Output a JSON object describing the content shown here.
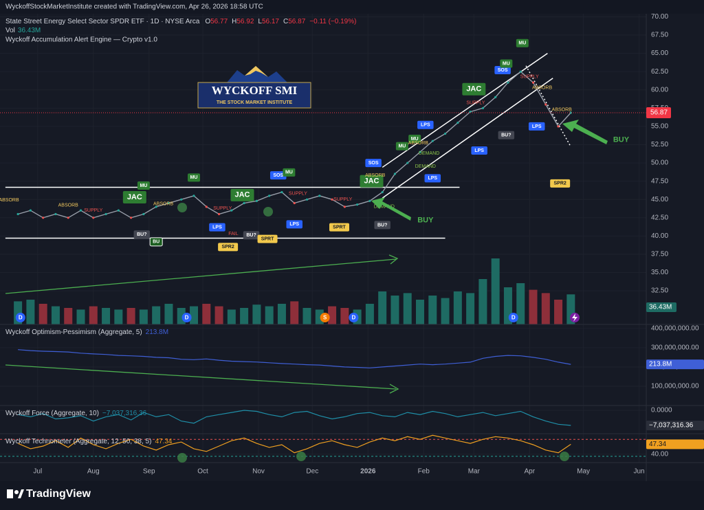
{
  "header": {
    "credit": "WyckoffStockMarketInstitute created with TradingView.com, Apr 26, 2026 18:58 UTC",
    "symbol": "State Street Energy Select Sector SPDR ETF · 1D · NYSE Arca",
    "ohlc": [
      {
        "label": "O",
        "value": 56.77
      },
      {
        "label": "H",
        "value": 56.92
      },
      {
        "label": "L",
        "value": 56.17
      },
      {
        "label": "C",
        "value": 56.87
      }
    ],
    "change": "−0.11 (−0.19%)",
    "volume_label": "Vol",
    "indicator": "Wyckoff Accumulation Alert Engine — Crypto v1.0"
  },
  "logo": {
    "title": "WYCKOFF SMI",
    "subtitle": "THE STOCK MARKET INSTITUTE"
  },
  "footer": {
    "brand": "TradingView"
  },
  "chart_data": [
    {
      "type": "line",
      "color": "#9aa0ab",
      "x": [
        0,
        7,
        14,
        21,
        28,
        35,
        42,
        49,
        56,
        63,
        70,
        77,
        84,
        91,
        98,
        105,
        112,
        119,
        126,
        133,
        140,
        147,
        154,
        161,
        168,
        175,
        182,
        189,
        196,
        203,
        210,
        217,
        224,
        231,
        238,
        245,
        252,
        259,
        266,
        273,
        280,
        287,
        294,
        301,
        308
      ],
      "values": [
        43,
        43.5,
        42.5,
        43,
        42.5,
        43.5,
        42.5,
        43,
        43.5,
        42.5,
        43,
        44,
        44.5,
        45,
        45.5,
        44,
        43,
        43.5,
        44.5,
        44.8,
        45.5,
        46,
        44.5,
        45,
        45.5,
        45,
        44,
        44.3,
        44.8,
        46,
        48.5,
        50,
        51.5,
        53,
        54,
        55.5,
        57,
        57.5,
        59,
        61,
        62.5,
        61,
        58,
        55,
        56.87
      ],
      "value_labels": [
        null,
        null,
        null,
        null,
        null,
        null,
        null,
        null,
        null,
        null,
        null,
        null,
        null,
        null,
        null,
        null,
        null,
        null,
        null,
        null,
        null,
        null,
        null,
        null,
        null,
        null,
        null,
        null,
        null,
        null,
        null,
        null,
        null,
        null,
        null,
        null,
        null,
        null,
        null,
        null,
        null,
        null,
        null,
        null,
        "56.87"
      ],
      "last_color": "#f23645",
      "xlim": [
        -10,
        350
      ],
      "xticks": [
        {
          "value": 11,
          "label": "Jul"
        },
        {
          "value": 42,
          "label": "Aug"
        },
        {
          "value": 73,
          "label": "Sep"
        },
        {
          "value": 103,
          "label": "Oct"
        },
        {
          "value": 134,
          "label": "Nov"
        },
        {
          "value": 164,
          "label": "Dec"
        },
        {
          "value": 195,
          "label": "2026"
        },
        {
          "value": 226,
          "label": "Feb"
        },
        {
          "value": 254,
          "label": "Mar"
        },
        {
          "value": 285,
          "label": "Apr"
        },
        {
          "value": 315,
          "label": "May"
        },
        {
          "value": 346,
          "label": "Jun"
        }
      ],
      "ylim": [
        27.9,
        72.3
      ],
      "yticks": [
        {
          "value": 70,
          "label": "70.00"
        },
        {
          "value": 67.5,
          "label": "67.50"
        },
        {
          "value": 65,
          "label": "65.00"
        },
        {
          "value": 62.5,
          "label": "62.50"
        },
        {
          "value": 60,
          "label": "60.00"
        },
        {
          "value": 57.5,
          "label": "57.50"
        },
        {
          "value": 55,
          "label": "55.00"
        },
        {
          "value": 52.5,
          "label": "52.50"
        },
        {
          "value": 50,
          "label": "50.00"
        },
        {
          "value": 47.5,
          "label": "47.50"
        },
        {
          "value": 45,
          "label": "45.00"
        },
        {
          "value": 42.5,
          "label": "42.50"
        },
        {
          "value": 40,
          "label": "40.00"
        },
        {
          "value": 37.5,
          "label": "37.50"
        },
        {
          "value": 35,
          "label": "35.00"
        },
        {
          "value": 32.5,
          "label": "32.50"
        }
      ],
      "styles": {
        "ABSORB": {
          "color": "#f0c75e",
          "box": false,
          "text": "#f0c75e"
        },
        "SUPPLY": {
          "color": "#ef5350",
          "box": false,
          "text": "#ef5350"
        },
        "DEMAND": {
          "color": "#8bc34a",
          "box": false,
          "text": "#8bc34a"
        },
        "FAIL": {
          "color": "#ef5350",
          "box": false,
          "text": "#ef5350"
        },
        "JAC": {
          "color": "#2e7d32",
          "box": true,
          "text": "#ffffff"
        },
        "MU": {
          "color": "#2e7d32",
          "box": true,
          "text": "#ffffff"
        },
        "SOS": {
          "color": "#2962ff",
          "box": true,
          "text": "#ffffff"
        },
        "LPS": {
          "color": "#2962ff",
          "box": true,
          "text": "#ffffff"
        },
        "BU?": {
          "color": "#434651",
          "box": true,
          "text": "#ffffff"
        },
        "BU": {
          "color": "#1b5e20",
          "box": true,
          "text": "#ffffff"
        },
        "SPRT": {
          "color": "#f2c94c",
          "box": true,
          "text": "#131722"
        },
        "SPR2": {
          "color": "#f2c94c",
          "box": true,
          "text": "#131722"
        }
      },
      "annotations": [
        {
          "label": "ABSORB",
          "day": -5,
          "price": 44.9
        },
        {
          "label": "ABSORB",
          "day": 28,
          "price": 44.2
        },
        {
          "label": "SUPPLY",
          "day": 42,
          "price": 43.5
        },
        {
          "label": "JAC",
          "day": 65,
          "price": 45.3
        },
        {
          "label": "MU",
          "day": 70,
          "price": 46.9
        },
        {
          "label": "ABSORB",
          "day": 81,
          "price": 44.4
        },
        {
          "label": "BU?",
          "day": 69,
          "price": 40.2
        },
        {
          "label": "BU",
          "day": 77,
          "price": 39.2
        },
        {
          "label": "MU",
          "day": 98,
          "price": 48.0
        },
        {
          "label": "SUPPLY",
          "day": 114,
          "price": 43.8
        },
        {
          "label": "JAC",
          "day": 125,
          "price": 45.6
        },
        {
          "label": "LPS",
          "day": 111,
          "price": 41.2
        },
        {
          "label": "FAIL",
          "day": 120,
          "price": 40.3
        },
        {
          "label": "SPR2",
          "day": 117,
          "price": 38.5
        },
        {
          "label": "BU?",
          "day": 130,
          "price": 40.1
        },
        {
          "label": "SPRT",
          "day": 139,
          "price": 39.6
        },
        {
          "label": "SOS",
          "day": 145,
          "price": 48.3
        },
        {
          "label": "MU",
          "day": 151,
          "price": 48.7
        },
        {
          "label": "LPS",
          "day": 154,
          "price": 41.6
        },
        {
          "label": "SUPPLY",
          "day": 156,
          "price": 45.8
        },
        {
          "label": "SUPPLY",
          "day": 181,
          "price": 45.0
        },
        {
          "label": "SPRT",
          "day": 179,
          "price": 41.2
        },
        {
          "label": "BU?",
          "day": 203,
          "price": 41.5
        },
        {
          "label": "JAC",
          "day": 197,
          "price": 47.5
        },
        {
          "label": "ABSORB",
          "day": 199,
          "price": 48.3
        },
        {
          "label": "SOS",
          "day": 198,
          "price": 50.0
        },
        {
          "label": "DEMAND",
          "day": 204,
          "price": 44.0
        },
        {
          "label": "MU",
          "day": 214,
          "price": 52.3
        },
        {
          "label": "MU",
          "day": 221,
          "price": 53.3
        },
        {
          "label": "ABSORB",
          "day": 223,
          "price": 52.7
        },
        {
          "label": "LPS",
          "day": 227,
          "price": 55.2
        },
        {
          "label": "DEMAND",
          "day": 229,
          "price": 51.3
        },
        {
          "label": "DEMAND",
          "day": 227,
          "price": 49.5
        },
        {
          "label": "LPS",
          "day": 231,
          "price": 47.9
        },
        {
          "label": "JAC",
          "day": 254,
          "price": 60.1
        },
        {
          "label": "SUPPLY",
          "day": 255,
          "price": 58.2
        },
        {
          "label": "LPS",
          "day": 257,
          "price": 51.7
        },
        {
          "label": "BU?",
          "day": 272,
          "price": 53.8
        },
        {
          "label": "SOS",
          "day": 270,
          "price": 62.7
        },
        {
          "label": "MU",
          "day": 272,
          "price": 63.6
        },
        {
          "label": "MU",
          "day": 281,
          "price": 66.4
        },
        {
          "label": "SUPPLY",
          "day": 285,
          "price": 61.8
        },
        {
          "label": "ABSORB",
          "day": 292,
          "price": 60.3
        },
        {
          "label": "LPS",
          "day": 289,
          "price": 55.0
        },
        {
          "label": "ABSORB",
          "day": 303,
          "price": 57.3
        },
        {
          "label": "SPR2",
          "day": 302,
          "price": 47.2
        }
      ],
      "buy_labels": [
        {
          "label": "BUY",
          "day": 227,
          "price": 42.16
        },
        {
          "label": "BUY",
          "day": 336,
          "price": 53.16
        }
      ],
      "lines": [
        {
          "from": [
            -7,
            46.67
          ],
          "to": [
            246,
            46.67
          ],
          "color": "#ffffff",
          "dash": false
        },
        {
          "from": [
            -7,
            39.7
          ],
          "to": [
            238,
            39.7
          ],
          "color": "#ffffff",
          "dash": false
        },
        {
          "from": [
            203,
            45.2
          ],
          "to": [
            298,
            61.6
          ],
          "color": "#ffffff",
          "dash": false
        },
        {
          "from": [
            203,
            49.4
          ],
          "to": [
            295,
            65.0
          ],
          "color": "#ffffff",
          "dash": false
        },
        {
          "from": [
            283,
            63.3
          ],
          "to": [
            308,
            52.2
          ],
          "color": "#ffffff",
          "dash": true
        }
      ],
      "events": [
        {
          "label": "D",
          "day": 1.4,
          "color": "#2962ff"
        },
        {
          "label": "D",
          "day": 94,
          "color": "#2962ff"
        },
        {
          "label": "S",
          "day": 171,
          "color": "#f57c00"
        },
        {
          "label": "D",
          "day": 187,
          "color": "#2962ff"
        },
        {
          "label": "D",
          "day": 276,
          "color": "#2962ff"
        }
      ]
    },
    {
      "type": "bar",
      "colors": {
        "up": "#1e6b63",
        "down": "#8e2f3a"
      },
      "ylim": [
        0,
        100
      ],
      "values": [
        28,
        30,
        25,
        22,
        20,
        18,
        22,
        20,
        18,
        20,
        18,
        22,
        25,
        20,
        22,
        25,
        22,
        18,
        20,
        24,
        22,
        25,
        28,
        20,
        18,
        22,
        20,
        18,
        25,
        40,
        35,
        38,
        30,
        35,
        32,
        40,
        38,
        55,
        80,
        45,
        50,
        42,
        38,
        30,
        36.43
      ],
      "value_labels": [
        null,
        null,
        null,
        null,
        null,
        null,
        null,
        null,
        null,
        null,
        null,
        null,
        null,
        null,
        null,
        null,
        null,
        null,
        null,
        null,
        null,
        null,
        null,
        null,
        null,
        null,
        null,
        null,
        null,
        null,
        null,
        null,
        null,
        null,
        null,
        null,
        null,
        null,
        null,
        null,
        null,
        null,
        null,
        null,
        "36.43M"
      ],
      "badge_color": "#1e6b63"
    },
    {
      "type": "line",
      "title": "Wyckoff Optimism-Pessimism (Aggregate, 5)",
      "color": "#3f5fd6",
      "ylim": [
        0,
        421000000
      ],
      "yticks": [
        {
          "value": 400000000,
          "label": "400,000,000.00"
        },
        {
          "value": 300000000,
          "label": "300,000,000.00"
        },
        {
          "value": 200000000,
          "label": "200,000,000.00"
        },
        {
          "value": 100000000,
          "label": "100,000,000.00"
        }
      ],
      "values": [
        290000000,
        285000000,
        282000000,
        280000000,
        278000000,
        272000000,
        268000000,
        265000000,
        260000000,
        258000000,
        255000000,
        250000000,
        248000000,
        240000000,
        238000000,
        242000000,
        235000000,
        230000000,
        228000000,
        226000000,
        222000000,
        218000000,
        215000000,
        212000000,
        210000000,
        205000000,
        200000000,
        198000000,
        195000000,
        200000000,
        205000000,
        210000000,
        215000000,
        212000000,
        215000000,
        220000000,
        225000000,
        245000000,
        255000000,
        260000000,
        258000000,
        250000000,
        240000000,
        225000000,
        213800000
      ],
      "value_labels": [
        null,
        null,
        null,
        null,
        null,
        null,
        null,
        null,
        null,
        null,
        null,
        null,
        null,
        null,
        null,
        null,
        null,
        null,
        null,
        null,
        null,
        null,
        null,
        null,
        null,
        null,
        null,
        null,
        null,
        null,
        null,
        null,
        null,
        null,
        null,
        null,
        null,
        null,
        null,
        null,
        null,
        null,
        null,
        null,
        "213.8M"
      ]
    },
    {
      "type": "line",
      "title": "Wyckoff Force (Aggregate, 10)",
      "color": "#1f8fa8",
      "ylim": [
        -10900000,
        2240000
      ],
      "yticks": [
        {
          "value": 0,
          "label": "0.0000"
        }
      ],
      "values": [
        -2000000,
        -3000000,
        -1500000,
        -4000000,
        -3500000,
        -2500000,
        -5000000,
        -3000000,
        -2000000,
        -4500000,
        -1000000,
        -3000000,
        -2000000,
        -5000000,
        -6000000,
        -3000000,
        -2000000,
        -1000000,
        0,
        -500000,
        -2000000,
        -3000000,
        -1000000,
        -500000,
        -2500000,
        -4000000,
        -3000000,
        -1500000,
        -1000000,
        -2500000,
        -3000000,
        -1000000,
        -2000000,
        -500000,
        -1500000,
        -3000000,
        -2000000,
        -1000000,
        -2500000,
        -1500000,
        -500000,
        -3000000,
        -5000000,
        -6500000,
        -7037316.36
      ],
      "value_labels": [
        null,
        null,
        null,
        null,
        null,
        null,
        null,
        null,
        null,
        null,
        null,
        null,
        null,
        null,
        null,
        null,
        null,
        null,
        null,
        null,
        null,
        null,
        null,
        null,
        null,
        null,
        null,
        null,
        null,
        null,
        null,
        null,
        null,
        null,
        null,
        null,
        null,
        null,
        null,
        null,
        null,
        null,
        null,
        null,
        "−7,037,316.36"
      ]
    },
    {
      "type": "line",
      "title": "Wyckoff Technometer (Aggregate, 12, 50, 38, 5)",
      "color": "#f0a020",
      "ylim": [
        33.7,
        55.2
      ],
      "yticks": [
        {
          "value": 40,
          "label": "40.00"
        }
      ],
      "levels": [
        {
          "value": 51,
          "color": "#ef5350"
        },
        {
          "value": 38.4,
          "color": "#26a69a"
        }
      ],
      "values": [
        48,
        44,
        46,
        50,
        45,
        52,
        47,
        44,
        48,
        51,
        46,
        43,
        47,
        49,
        44,
        42,
        46,
        50,
        52,
        48,
        45,
        47,
        41,
        44,
        48,
        50,
        47,
        45,
        49,
        52,
        50,
        53,
        51,
        54,
        52,
        50,
        48,
        51,
        53,
        52,
        50,
        47,
        43,
        41,
        47.34
      ],
      "value_labels": [
        null,
        null,
        null,
        null,
        null,
        null,
        null,
        null,
        null,
        null,
        null,
        null,
        null,
        null,
        null,
        null,
        null,
        null,
        null,
        null,
        null,
        null,
        null,
        null,
        null,
        null,
        null,
        null,
        null,
        null,
        null,
        null,
        null,
        null,
        null,
        null,
        null,
        null,
        null,
        null,
        null,
        null,
        null,
        null,
        "47.34"
      ]
    }
  ]
}
